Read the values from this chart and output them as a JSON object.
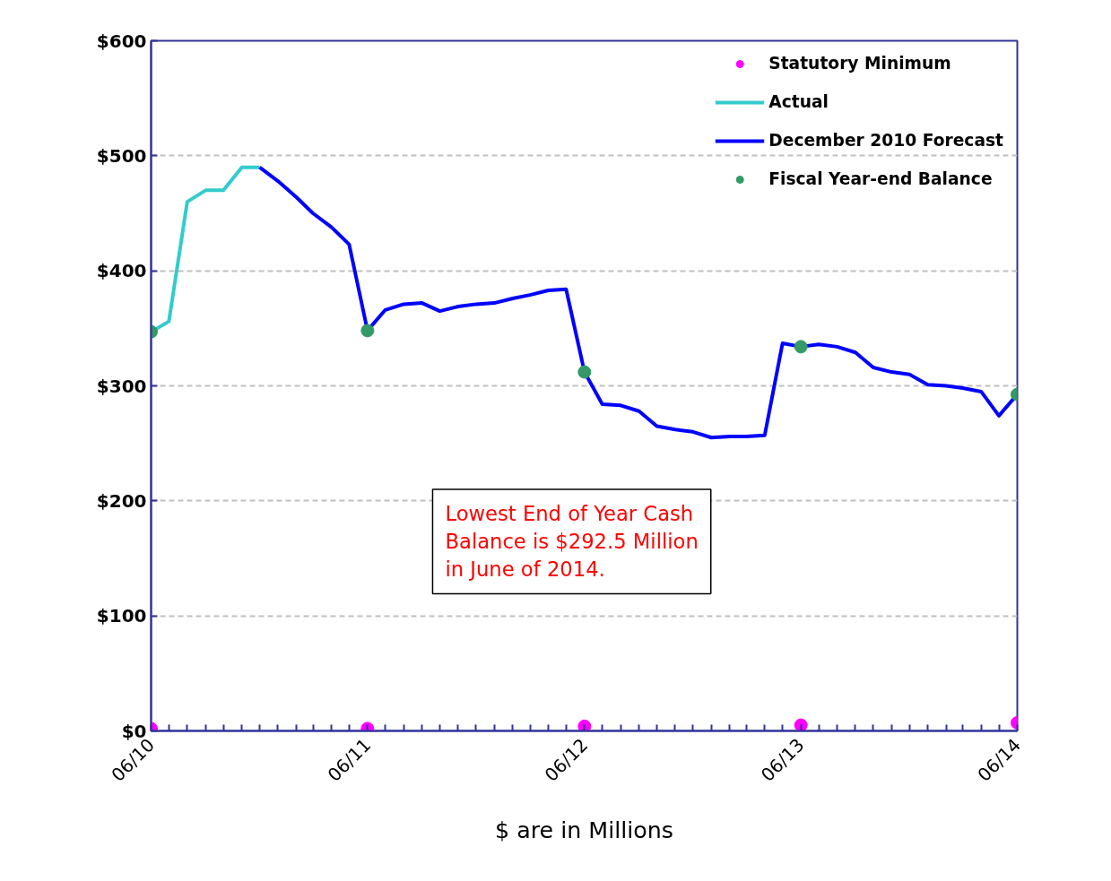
{
  "chart_data": {
    "type": "line",
    "annotations": [
      "Lowest End of Year Cash\nBalance is $292.5 Million\nin June of 2014.",
      "$ are in Millions"
    ],
    "xlim": [
      "2010-06",
      "2014-06"
    ],
    "xticks": [
      {
        "value": "2010-06",
        "label": "06/10"
      },
      {
        "value": "2010-07",
        "label": null
      },
      {
        "value": "2010-08",
        "label": null
      },
      {
        "value": "2010-09",
        "label": null
      },
      {
        "value": "2010-10",
        "label": null
      },
      {
        "value": "2010-11",
        "label": null
      },
      {
        "value": "2010-12",
        "label": null
      },
      {
        "value": "2011-01",
        "label": null
      },
      {
        "value": "2011-02",
        "label": null
      },
      {
        "value": "2011-03",
        "label": null
      },
      {
        "value": "2011-04",
        "label": null
      },
      {
        "value": "2011-05",
        "label": null
      },
      {
        "value": "2011-06",
        "label": "06/11"
      },
      {
        "value": "2011-07",
        "label": null
      },
      {
        "value": "2011-08",
        "label": null
      },
      {
        "value": "2011-09",
        "label": null
      },
      {
        "value": "2011-10",
        "label": null
      },
      {
        "value": "2011-11",
        "label": null
      },
      {
        "value": "2011-12",
        "label": null
      },
      {
        "value": "2012-01",
        "label": null
      },
      {
        "value": "2012-02",
        "label": null
      },
      {
        "value": "2012-03",
        "label": null
      },
      {
        "value": "2012-04",
        "label": null
      },
      {
        "value": "2012-05",
        "label": null
      },
      {
        "value": "2012-06",
        "label": "06/12"
      },
      {
        "value": "2012-07",
        "label": null
      },
      {
        "value": "2012-08",
        "label": null
      },
      {
        "value": "2012-09",
        "label": null
      },
      {
        "value": "2012-10",
        "label": null
      },
      {
        "value": "2012-11",
        "label": null
      },
      {
        "value": "2012-12",
        "label": null
      },
      {
        "value": "2013-01",
        "label": null
      },
      {
        "value": "2013-02",
        "label": null
      },
      {
        "value": "2013-03",
        "label": null
      },
      {
        "value": "2013-04",
        "label": null
      },
      {
        "value": "2013-05",
        "label": null
      },
      {
        "value": "2013-06",
        "label": "06/13"
      },
      {
        "value": "2013-07",
        "label": null
      },
      {
        "value": "2013-08",
        "label": null
      },
      {
        "value": "2013-09",
        "label": null
      },
      {
        "value": "2013-10",
        "label": null
      },
      {
        "value": "2013-11",
        "label": null
      },
      {
        "value": "2013-12",
        "label": null
      },
      {
        "value": "2014-01",
        "label": null
      },
      {
        "value": "2014-02",
        "label": null
      },
      {
        "value": "2014-03",
        "label": null
      },
      {
        "value": "2014-04",
        "label": null
      },
      {
        "value": "2014-05",
        "label": null
      },
      {
        "value": "2014-06",
        "label": "06/14"
      }
    ],
    "ylim": [
      0,
      600
    ],
    "yticks": [
      {
        "value": 0,
        "label": "$0"
      },
      {
        "value": 100,
        "label": "$100"
      },
      {
        "value": 200,
        "label": "$200"
      },
      {
        "value": 300,
        "label": "$300"
      },
      {
        "value": 400,
        "label": "$400"
      },
      {
        "value": 500,
        "label": "$500"
      },
      {
        "value": 600,
        "label": "$600"
      }
    ],
    "grid": "y",
    "legend": "top right",
    "series": [
      {
        "name": "Statutory Minimum",
        "type": "scatter",
        "marker": "circle",
        "color": "#ff00ff",
        "x": [
          "2010-06",
          "2011-06",
          "2012-06",
          "2013-06",
          "2014-06"
        ],
        "values": [
          2,
          2,
          4,
          5,
          7
        ]
      },
      {
        "name": "Actual",
        "color": "#33cccc",
        "x": [
          "2010-06",
          "2010-07",
          "2010-08",
          "2010-09",
          "2010-10",
          "2010-11",
          "2010-12"
        ],
        "values": [
          347,
          356,
          460,
          470,
          470,
          490,
          490
        ]
      },
      {
        "name": "December 2010 Forecast",
        "color": "#0000ff",
        "x": [
          "2010-12",
          "2011-01",
          "2011-02",
          "2011-03",
          "2011-04",
          "2011-05",
          "2011-06",
          "2011-07",
          "2011-08",
          "2011-09",
          "2011-10",
          "2011-11",
          "2011-12",
          "2012-01",
          "2012-02",
          "2012-03",
          "2012-04",
          "2012-05",
          "2012-06",
          "2012-07",
          "2012-08",
          "2012-09",
          "2012-10",
          "2012-11",
          "2012-12",
          "2013-01",
          "2013-02",
          "2013-03",
          "2013-04",
          "2013-05",
          "2013-06",
          "2013-07",
          "2013-08",
          "2013-09",
          "2013-10",
          "2013-11",
          "2013-12",
          "2014-01",
          "2014-02",
          "2014-03",
          "2014-04",
          "2014-05",
          "2014-06"
        ],
        "values": [
          490,
          478,
          464,
          450,
          438,
          423,
          348,
          366,
          371,
          372,
          365,
          369,
          371,
          372,
          376,
          379,
          383,
          384,
          312,
          284,
          283,
          278,
          265,
          262,
          260,
          255,
          256,
          256,
          257,
          337,
          334,
          336,
          334,
          329,
          316,
          312,
          310,
          301,
          300,
          298,
          295,
          274,
          292.5
        ]
      },
      {
        "name": "Fiscal Year-end Balance",
        "type": "scatter",
        "marker": "circle",
        "color": "#339966",
        "x": [
          "2010-06",
          "2011-06",
          "2012-06",
          "2013-06",
          "2014-06"
        ],
        "values": [
          347,
          348,
          312,
          334,
          292.5
        ]
      }
    ]
  }
}
